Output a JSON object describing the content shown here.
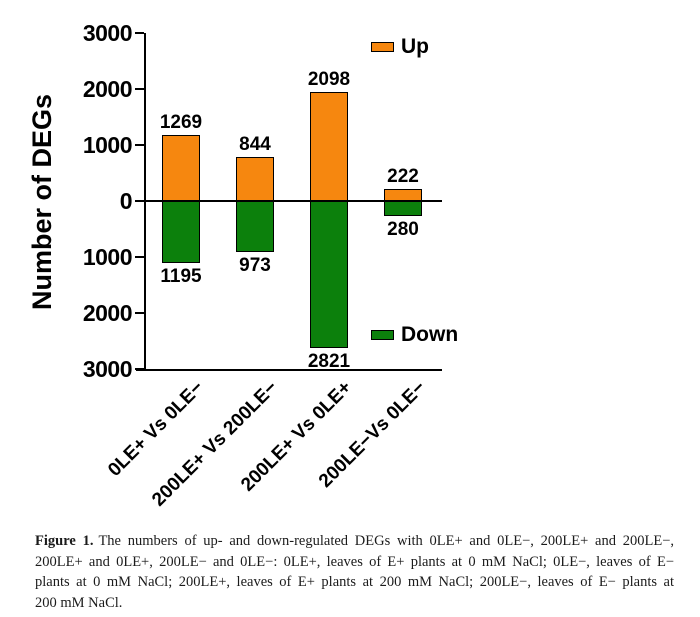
{
  "chart_data": {
    "type": "bar",
    "subtype": "diverging-stacked-column",
    "title": "",
    "xlabel": "",
    "ylabel": "Number of DEGs",
    "categories": [
      "0LE+ Vs 0LE−",
      "200LE+ Vs 200LE−",
      "200LE+ Vs 0LE+",
      "200LE−Vs 0LE−"
    ],
    "series": [
      {
        "name": "Up",
        "direction": "positive",
        "color": "#F6870F",
        "values": [
          1269,
          844,
          2098,
          222
        ]
      },
      {
        "name": "Down",
        "direction": "negative",
        "color": "#0C800C",
        "values": [
          1195,
          973,
          2821,
          280
        ]
      }
    ],
    "value_labels": {
      "up": [
        "1269",
        "844",
        "2098",
        "222"
      ],
      "down": [
        "1195",
        "973",
        "2821",
        "280"
      ]
    },
    "ylim": [
      -3000,
      3000
    ],
    "ytick_labels": [
      "3000",
      "2000",
      "1000",
      "0",
      "1000",
      "2000",
      "3000"
    ],
    "grid": "off",
    "legend_position": "up-top-right, down-bottom-right"
  },
  "caption": {
    "label": "Figure 1.",
    "lines": [
      "The numbers of up- and down-regulated DEGs with 0LE+ and 0LE−, 200LE+ and 200LE−,",
      "200LE+ and 0LE+, 200LE− and 0LE−: 0LE+, leaves of E+ plants at 0 mM NaCl; 0LE−, leaves of E−",
      "plants at 0 mM NaCl; 200LE+, leaves of E+ plants at 200 mM NaCl; 200LE−, leaves of E− plants at",
      "200 mM NaCl."
    ]
  }
}
